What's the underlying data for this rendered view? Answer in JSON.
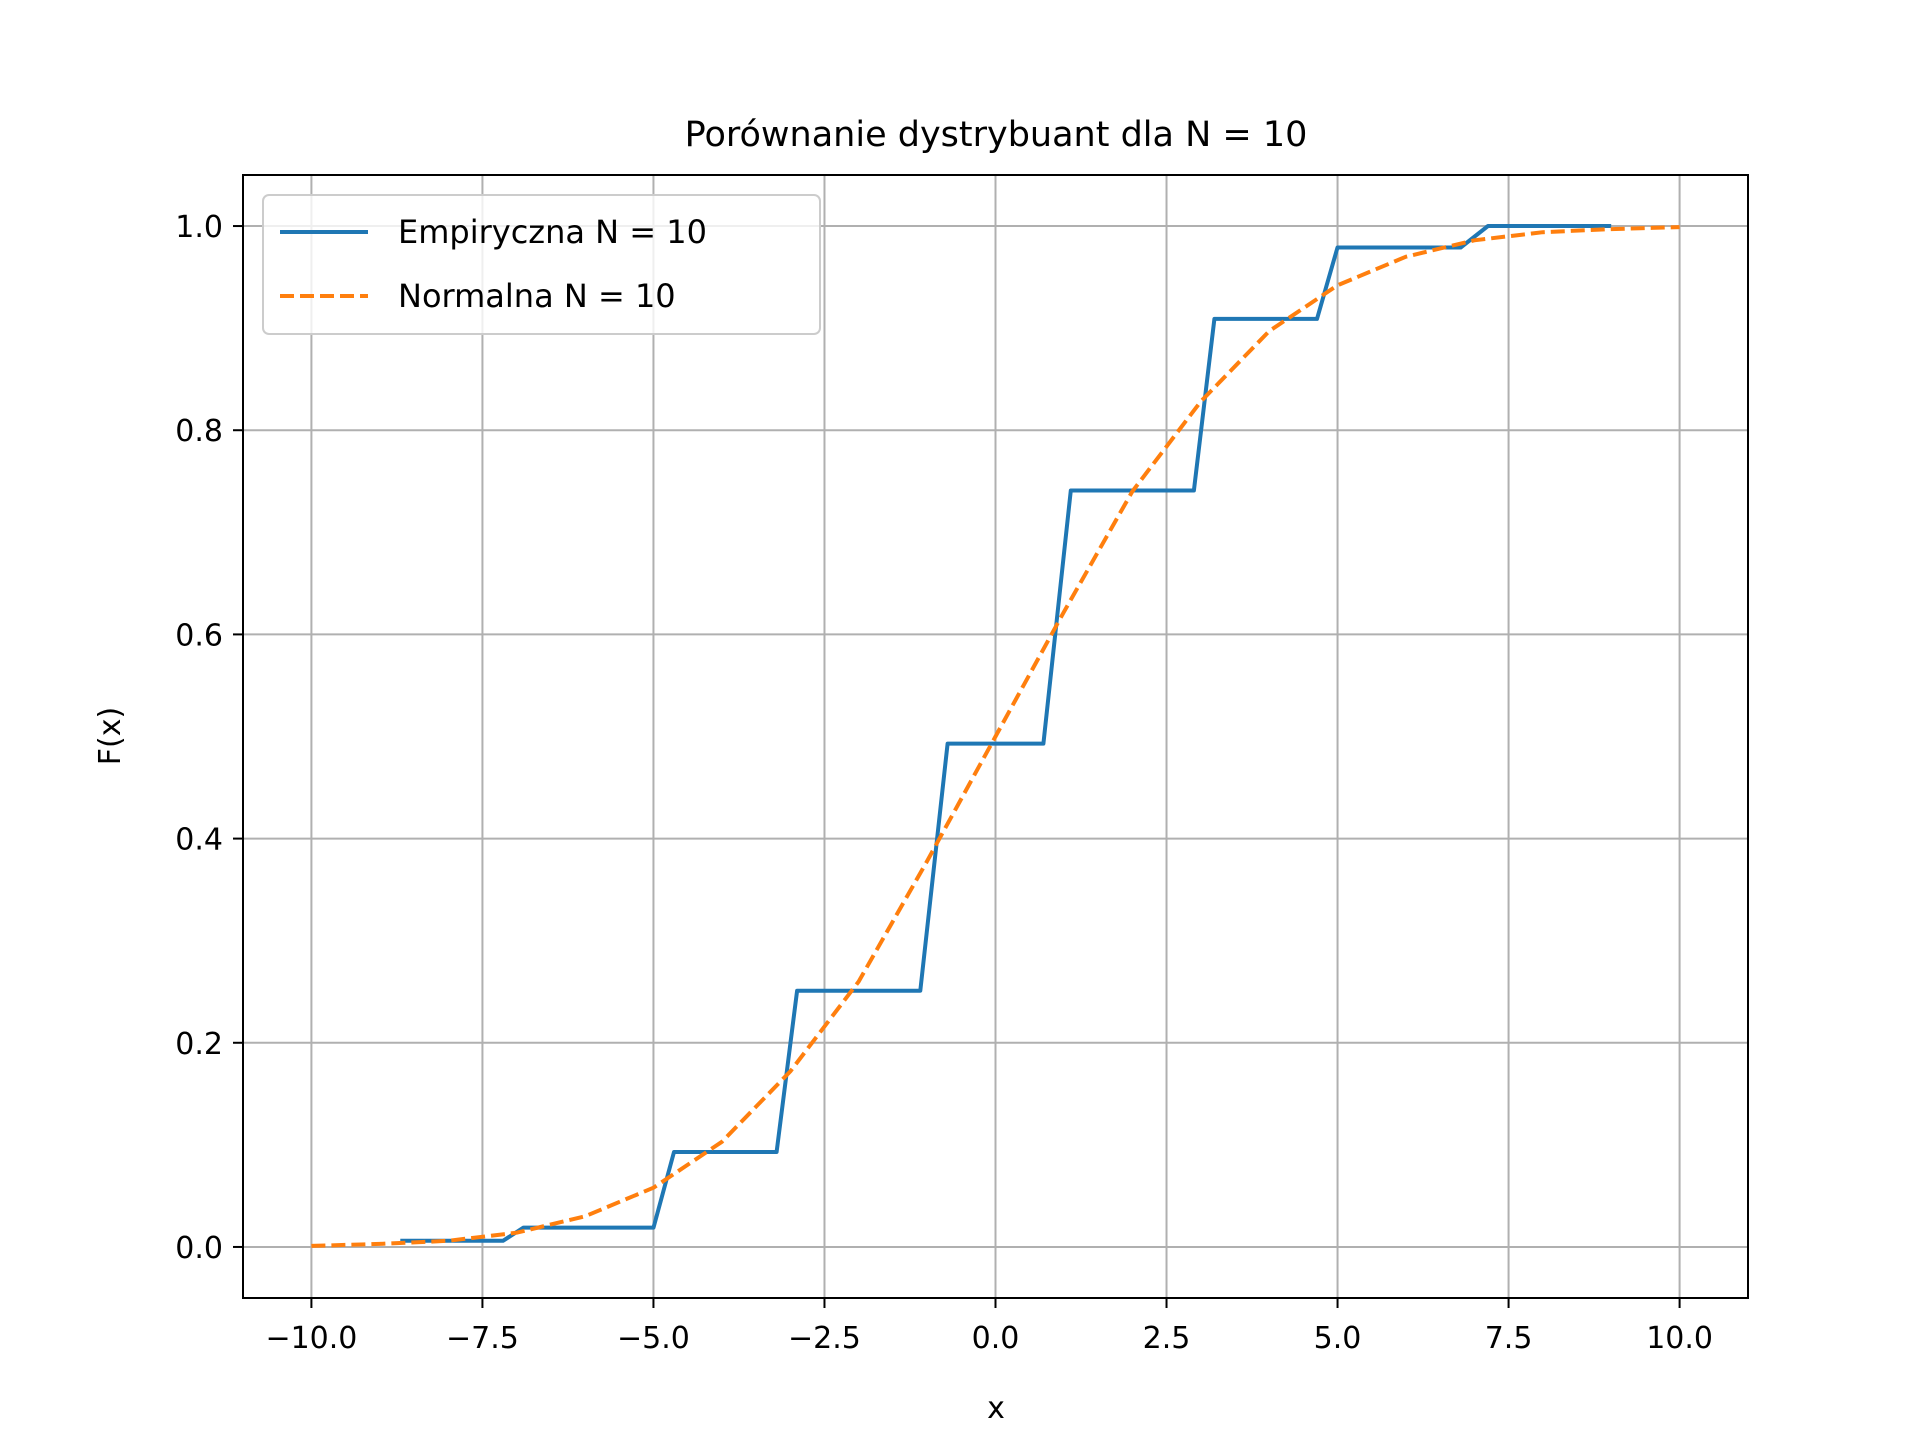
{
  "chart_data": {
    "type": "line",
    "title": "Porównanie dystrybuant dla N = 10",
    "xlabel": "x",
    "ylabel": "F(x)",
    "xlim": [
      -11.0,
      11.0
    ],
    "ylim": [
      -0.05,
      1.05
    ],
    "xticks": [
      -10.0,
      -7.5,
      -5.0,
      -2.5,
      0.0,
      2.5,
      5.0,
      7.5,
      10.0
    ],
    "xtick_labels": [
      "−10.0",
      "−7.5",
      "−5.0",
      "−2.5",
      "0.0",
      "2.5",
      "5.0",
      "7.5",
      "10.0"
    ],
    "yticks": [
      0.0,
      0.2,
      0.4,
      0.6,
      0.8,
      1.0
    ],
    "ytick_labels": [
      "0.0",
      "0.2",
      "0.4",
      "0.6",
      "0.8",
      "1.0"
    ],
    "grid": true,
    "legend_position": "upper-left",
    "series": [
      {
        "name": "Empiryczna N = 10",
        "color": "#1f77b4",
        "style": "solid",
        "x": [
          -8.7,
          -7.2,
          -6.9,
          -5.0,
          -4.7,
          -3.2,
          -2.9,
          -1.1,
          -0.7,
          0.7,
          1.1,
          2.9,
          3.2,
          4.7,
          5.0,
          6.8,
          7.2,
          9.0
        ],
        "y": [
          0.006,
          0.006,
          0.019,
          0.019,
          0.093,
          0.093,
          0.251,
          0.251,
          0.493,
          0.493,
          0.741,
          0.741,
          0.909,
          0.909,
          0.979,
          0.979,
          1.0,
          1.0
        ]
      },
      {
        "name": "Normalna N = 10",
        "color": "#ff7f0e",
        "style": "dashed",
        "x": [
          -10.0,
          -9.0,
          -8.0,
          -7.0,
          -6.0,
          -5.0,
          -4.0,
          -3.0,
          -2.0,
          -1.0,
          0.0,
          1.0,
          2.0,
          3.0,
          4.0,
          5.0,
          6.0,
          7.0,
          8.0,
          9.0,
          10.0
        ],
        "y": [
          0.001,
          0.003,
          0.006,
          0.014,
          0.03,
          0.058,
          0.103,
          0.172,
          0.26,
          0.378,
          0.5,
          0.622,
          0.74,
          0.828,
          0.897,
          0.942,
          0.97,
          0.986,
          0.994,
          0.997,
          0.999
        ]
      }
    ]
  }
}
